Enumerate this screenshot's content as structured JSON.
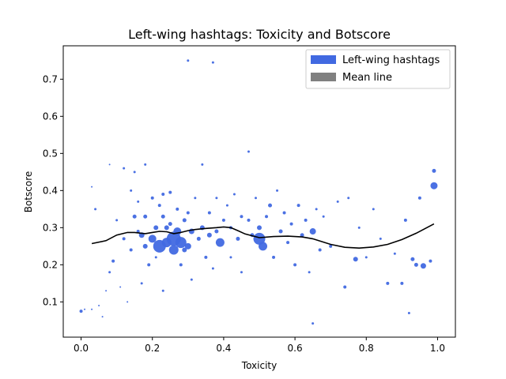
{
  "chart_data": {
    "type": "scatter",
    "title": "Left-wing hashtags: Toxicity and Botscore",
    "xlabel": "Toxicity",
    "ylabel": "Botscore",
    "xlim": [
      -0.05,
      1.05
    ],
    "ylim": [
      0.005,
      0.79
    ],
    "xticks": [
      "0.0",
      "0.2",
      "0.4",
      "0.6",
      "0.8",
      "1.0"
    ],
    "yticks": [
      "0.1",
      "0.2",
      "0.3",
      "0.4",
      "0.5",
      "0.6",
      "0.7"
    ],
    "grid": false,
    "legend_position": "top-right",
    "legend": [
      {
        "label": "Left-wing hashtags",
        "color": "#4169e1"
      },
      {
        "label": "Mean line",
        "color": "#808080"
      }
    ],
    "series": [
      {
        "name": "Left-wing hashtags",
        "color": "#4169e1",
        "points": [
          [
            0.0,
            0.075,
            2
          ],
          [
            0.01,
            0.08,
            1
          ],
          [
            0.03,
            0.41,
            1
          ],
          [
            0.03,
            0.08,
            1
          ],
          [
            0.04,
            0.35,
            1.5
          ],
          [
            0.05,
            0.09,
            1
          ],
          [
            0.06,
            0.06,
            1
          ],
          [
            0.07,
            0.13,
            1
          ],
          [
            0.08,
            0.47,
            1
          ],
          [
            0.08,
            0.18,
            1.5
          ],
          [
            0.09,
            0.21,
            2
          ],
          [
            0.1,
            0.32,
            1.5
          ],
          [
            0.11,
            0.14,
            1
          ],
          [
            0.12,
            0.46,
            1.5
          ],
          [
            0.12,
            0.27,
            2
          ],
          [
            0.13,
            0.1,
            1
          ],
          [
            0.14,
            0.4,
            1.5
          ],
          [
            0.14,
            0.24,
            2
          ],
          [
            0.15,
            0.45,
            1.5
          ],
          [
            0.15,
            0.33,
            2.5
          ],
          [
            0.16,
            0.37,
            1.5
          ],
          [
            0.16,
            0.29,
            2
          ],
          [
            0.17,
            0.28,
            3.5
          ],
          [
            0.17,
            0.15,
            1.5
          ],
          [
            0.18,
            0.33,
            2.5
          ],
          [
            0.18,
            0.25,
            3
          ],
          [
            0.18,
            0.47,
            1.5
          ],
          [
            0.19,
            0.2,
            2
          ],
          [
            0.2,
            0.38,
            2
          ],
          [
            0.2,
            0.27,
            5
          ],
          [
            0.21,
            0.3,
            3
          ],
          [
            0.21,
            0.22,
            1.5
          ],
          [
            0.22,
            0.36,
            2
          ],
          [
            0.22,
            0.25,
            8
          ],
          [
            0.23,
            0.39,
            2
          ],
          [
            0.23,
            0.33,
            2.5
          ],
          [
            0.23,
            0.13,
            1.5
          ],
          [
            0.24,
            0.3,
            3
          ],
          [
            0.24,
            0.26,
            6
          ],
          [
            0.25,
            0.395,
            2
          ],
          [
            0.25,
            0.31,
            2.5
          ],
          [
            0.26,
            0.27,
            9
          ],
          [
            0.26,
            0.24,
            6
          ],
          [
            0.27,
            0.35,
            2
          ],
          [
            0.27,
            0.29,
            5
          ],
          [
            0.28,
            0.26,
            7
          ],
          [
            0.28,
            0.2,
            2
          ],
          [
            0.29,
            0.32,
            2.5
          ],
          [
            0.29,
            0.24,
            3
          ],
          [
            0.3,
            0.75,
            1.5
          ],
          [
            0.3,
            0.34,
            2
          ],
          [
            0.3,
            0.25,
            4
          ],
          [
            0.31,
            0.29,
            3.5
          ],
          [
            0.31,
            0.16,
            1.5
          ],
          [
            0.32,
            0.38,
            1.5
          ],
          [
            0.33,
            0.27,
            2.5
          ],
          [
            0.34,
            0.47,
            1.5
          ],
          [
            0.34,
            0.3,
            3
          ],
          [
            0.35,
            0.22,
            2
          ],
          [
            0.36,
            0.34,
            2
          ],
          [
            0.36,
            0.28,
            3
          ],
          [
            0.37,
            0.745,
            1.5
          ],
          [
            0.37,
            0.19,
            1.5
          ],
          [
            0.38,
            0.29,
            2.5
          ],
          [
            0.38,
            0.38,
            1.5
          ],
          [
            0.39,
            0.26,
            5.5
          ],
          [
            0.4,
            0.32,
            2
          ],
          [
            0.41,
            0.36,
            1.5
          ],
          [
            0.42,
            0.3,
            2
          ],
          [
            0.42,
            0.22,
            1.5
          ],
          [
            0.43,
            0.39,
            1.5
          ],
          [
            0.44,
            0.27,
            2.5
          ],
          [
            0.45,
            0.33,
            2
          ],
          [
            0.45,
            0.18,
            1.5
          ],
          [
            0.47,
            0.505,
            1.5
          ],
          [
            0.47,
            0.32,
            2
          ],
          [
            0.48,
            0.28,
            2.5
          ],
          [
            0.49,
            0.38,
            1.5
          ],
          [
            0.5,
            0.27,
            7.5
          ],
          [
            0.5,
            0.3,
            3
          ],
          [
            0.51,
            0.25,
            5.5
          ],
          [
            0.52,
            0.33,
            2
          ],
          [
            0.53,
            0.36,
            2.5
          ],
          [
            0.54,
            0.22,
            2
          ],
          [
            0.55,
            0.4,
            1.5
          ],
          [
            0.56,
            0.29,
            2.5
          ],
          [
            0.57,
            0.34,
            2
          ],
          [
            0.58,
            0.26,
            2
          ],
          [
            0.59,
            0.31,
            2
          ],
          [
            0.6,
            0.2,
            2
          ],
          [
            0.61,
            0.36,
            2
          ],
          [
            0.62,
            0.28,
            2.5
          ],
          [
            0.63,
            0.32,
            2
          ],
          [
            0.64,
            0.18,
            1.5
          ],
          [
            0.65,
            0.29,
            4
          ],
          [
            0.65,
            0.042,
            1.5
          ],
          [
            0.66,
            0.35,
            1.5
          ],
          [
            0.67,
            0.24,
            2
          ],
          [
            0.68,
            0.33,
            1.5
          ],
          [
            0.7,
            0.25,
            2
          ],
          [
            0.72,
            0.37,
            1.5
          ],
          [
            0.74,
            0.14,
            2
          ],
          [
            0.75,
            0.38,
            1.5
          ],
          [
            0.77,
            0.215,
            3
          ],
          [
            0.78,
            0.3,
            1.5
          ],
          [
            0.8,
            0.22,
            1.5
          ],
          [
            0.82,
            0.35,
            1.5
          ],
          [
            0.84,
            0.27,
            1.5
          ],
          [
            0.86,
            0.15,
            2
          ],
          [
            0.88,
            0.23,
            1.5
          ],
          [
            0.9,
            0.15,
            2
          ],
          [
            0.91,
            0.32,
            2
          ],
          [
            0.92,
            0.07,
            1.5
          ],
          [
            0.93,
            0.215,
            2.5
          ],
          [
            0.94,
            0.2,
            2.5
          ],
          [
            0.95,
            0.38,
            2
          ],
          [
            0.96,
            0.197,
            3.5
          ],
          [
            0.98,
            0.21,
            2
          ],
          [
            0.99,
            0.413,
            4.5
          ],
          [
            0.99,
            0.453,
            2.5
          ]
        ]
      }
    ],
    "mean_line": {
      "name": "Mean line",
      "color": "#000000",
      "x": [
        0.03,
        0.07,
        0.1,
        0.13,
        0.15,
        0.18,
        0.2,
        0.22,
        0.24,
        0.26,
        0.28,
        0.3,
        0.32,
        0.35,
        0.38,
        0.4,
        0.42,
        0.44,
        0.46,
        0.5,
        0.54,
        0.58,
        0.62,
        0.65,
        0.7,
        0.74,
        0.78,
        0.82,
        0.86,
        0.9,
        0.94,
        0.97,
        0.99
      ],
      "y": [
        0.257,
        0.265,
        0.28,
        0.287,
        0.287,
        0.284,
        0.287,
        0.29,
        0.289,
        0.284,
        0.287,
        0.292,
        0.295,
        0.298,
        0.3,
        0.302,
        0.3,
        0.292,
        0.283,
        0.273,
        0.276,
        0.277,
        0.275,
        0.27,
        0.255,
        0.247,
        0.245,
        0.248,
        0.255,
        0.268,
        0.285,
        0.3,
        0.31
      ]
    }
  }
}
